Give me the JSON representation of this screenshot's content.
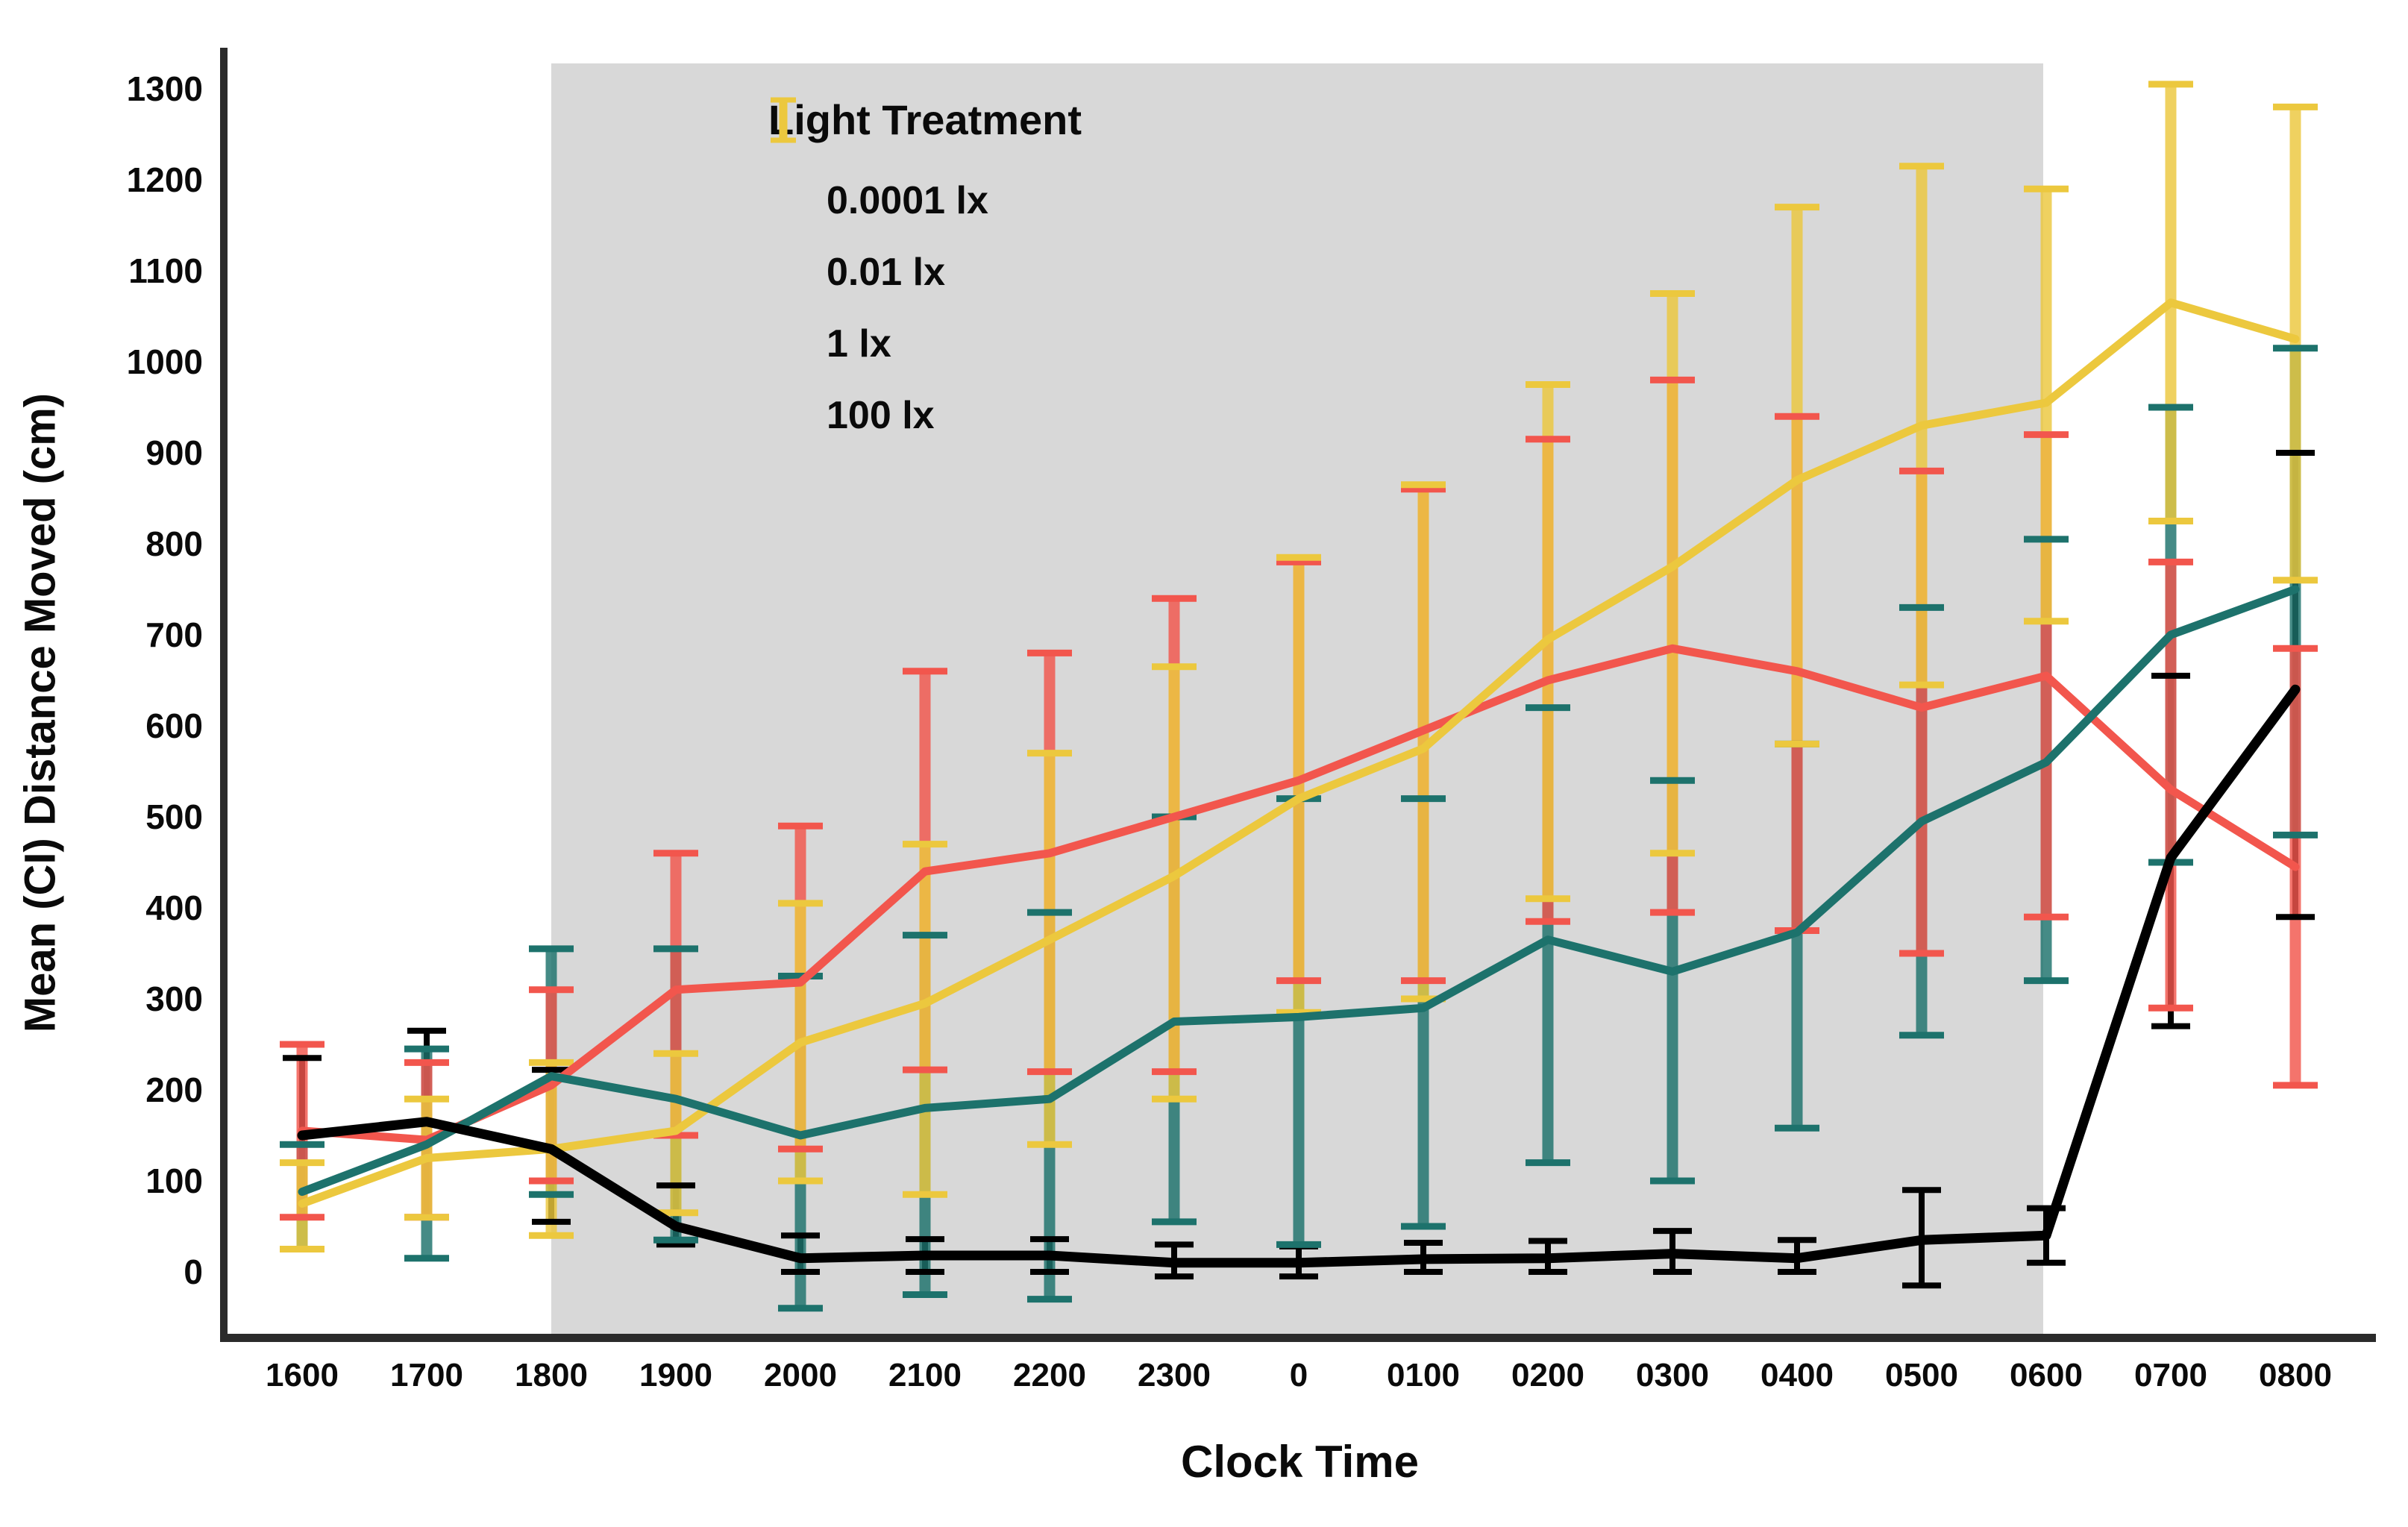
{
  "figure": {
    "y_axis_title": "Mean (CI) Distance Moved (cm)",
    "x_axis_title": "Clock Time",
    "axis_color": "#2b2b2b",
    "background_color": "#ffffff",
    "night_band_color": "#d8d8d8"
  },
  "legend": {
    "title": "Light Treatment",
    "items": [
      {
        "label": "0.0001 lx",
        "color": "#000000"
      },
      {
        "label": "0.01 lx",
        "color": "#1d726c"
      },
      {
        "label": "1 lx",
        "color": "#f2564d"
      },
      {
        "label": "100 lx",
        "color": "#ecc83e"
      }
    ]
  },
  "chart_data": {
    "type": "line",
    "title": "",
    "xlabel": "Clock Time",
    "ylabel": "Mean (CI) Distance Moved (cm)",
    "grid": false,
    "legend_position": "upper-left-inside",
    "categories": [
      "1600",
      "1700",
      "1800",
      "1900",
      "2000",
      "2100",
      "2200",
      "2300",
      "0",
      "0100",
      "0200",
      "0300",
      "0400",
      "0500",
      "0600",
      "0700",
      "0800"
    ],
    "y_ticks": [
      0,
      100,
      200,
      300,
      400,
      500,
      600,
      700,
      800,
      900,
      1000,
      1100,
      1200,
      1300
    ],
    "ylim": [
      -72,
      1345
    ],
    "night_band": {
      "from": "1800",
      "to": "0600"
    },
    "error_bars": "95% CI",
    "series": [
      {
        "name": "0.0001 lx",
        "color": "#000000",
        "values": [
          150,
          165,
          135,
          50,
          15,
          18,
          18,
          10,
          10,
          14,
          15,
          20,
          15,
          35,
          40,
          455,
          640
        ],
        "ci_low": [
          60,
          60,
          55,
          30,
          0,
          0,
          0,
          -5,
          -5,
          0,
          0,
          0,
          0,
          -15,
          10,
          270,
          390
        ],
        "ci_high": [
          235,
          265,
          222,
          95,
          40,
          36,
          36,
          30,
          28,
          32,
          34,
          45,
          35,
          90,
          70,
          655,
          900
        ]
      },
      {
        "name": "0.01 lx",
        "color": "#1d726c",
        "values": [
          88,
          140,
          215,
          190,
          150,
          180,
          190,
          275,
          280,
          290,
          365,
          330,
          373,
          495,
          560,
          700,
          750
        ],
        "ci_low": [
          25,
          15,
          85,
          35,
          -40,
          -25,
          -30,
          55,
          30,
          50,
          120,
          100,
          158,
          260,
          320,
          450,
          480
        ],
        "ci_high": [
          140,
          245,
          355,
          355,
          325,
          370,
          395,
          500,
          520,
          520,
          620,
          540,
          580,
          730,
          805,
          950,
          1015
        ]
      },
      {
        "name": "1 lx",
        "color": "#f2564d",
        "values": [
          155,
          145,
          205,
          310,
          318,
          440,
          460,
          500,
          540,
          595,
          650,
          685,
          660,
          620,
          655,
          530,
          445
        ],
        "ci_low": [
          60,
          60,
          100,
          150,
          135,
          222,
          220,
          220,
          320,
          320,
          385,
          395,
          375,
          350,
          390,
          290,
          205
        ],
        "ci_high": [
          250,
          230,
          310,
          460,
          490,
          660,
          680,
          740,
          780,
          860,
          915,
          980,
          940,
          880,
          920,
          780,
          685
        ]
      },
      {
        "name": "100 lx",
        "color": "#ecc83e",
        "values": [
          75,
          125,
          135,
          155,
          252,
          295,
          365,
          435,
          520,
          575,
          695,
          775,
          870,
          930,
          955,
          1065,
          1025
        ],
        "ci_low": [
          25,
          60,
          40,
          65,
          100,
          85,
          140,
          190,
          285,
          300,
          410,
          460,
          580,
          645,
          715,
          825,
          760
        ],
        "ci_high": [
          120,
          190,
          230,
          240,
          405,
          470,
          570,
          665,
          785,
          865,
          975,
          1075,
          1170,
          1215,
          1190,
          1305,
          1280
        ]
      }
    ]
  }
}
